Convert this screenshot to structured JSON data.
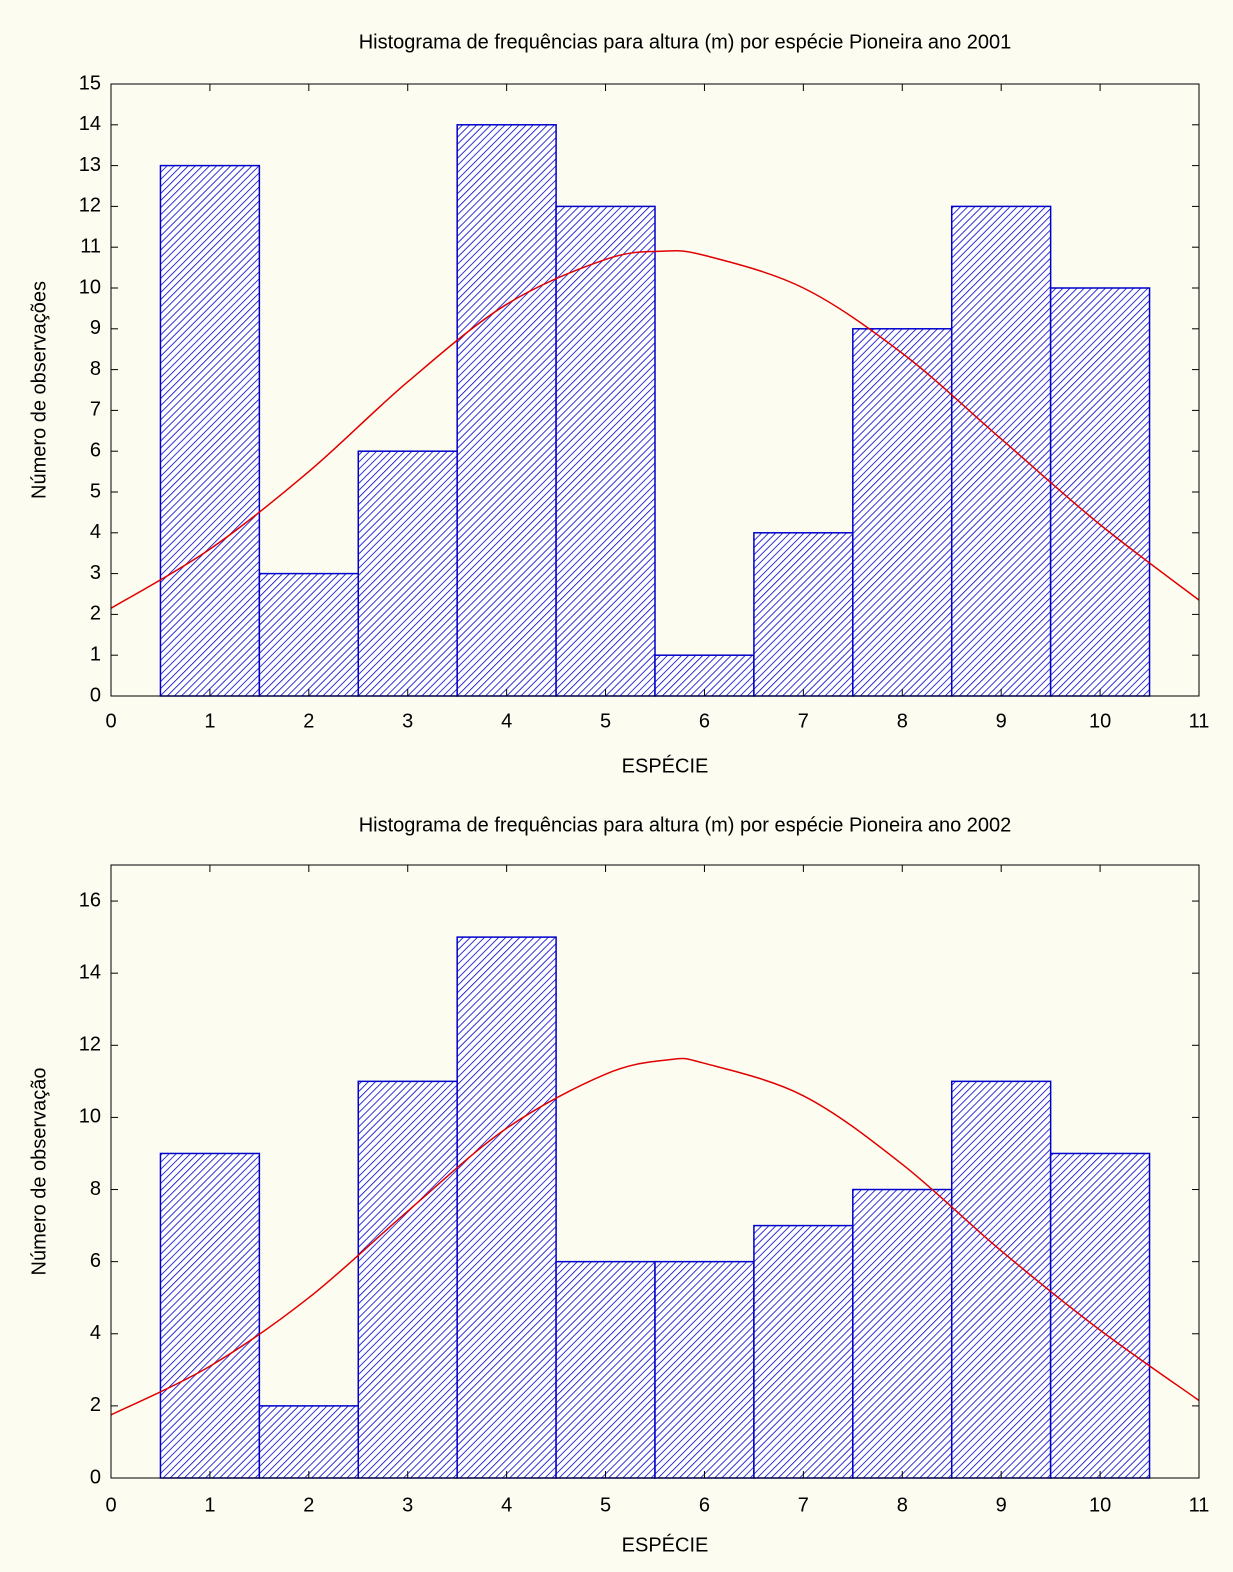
{
  "chart_data": [
    {
      "type": "histogram",
      "title": "Histograma de frequências para altura (m) por espécie Pioneira ano 2001",
      "xlabel": "ESPÉCIE",
      "ylabel": "Número de observações",
      "bins": [
        0.5,
        1.5,
        2.5,
        3.5,
        4.5,
        5.5,
        6.5,
        7.5,
        8.5,
        9.5,
        10.5
      ],
      "values": [
        13,
        3,
        6,
        14,
        12,
        1,
        4,
        9,
        12,
        10
      ],
      "color": "#0000cc",
      "xlim": [
        0,
        11
      ],
      "ylim": [
        0,
        15
      ],
      "xticks": [
        0,
        1,
        2,
        3,
        4,
        5,
        6,
        7,
        8,
        9,
        10,
        11
      ],
      "yticks": [
        0,
        1,
        2,
        3,
        4,
        5,
        6,
        7,
        8,
        9,
        10,
        11,
        12,
        13,
        14,
        15
      ],
      "curve": {
        "color": "#e00000",
        "x": [
          0,
          1,
          2,
          3,
          4,
          5,
          5.56,
          6,
          7,
          8,
          9,
          10,
          11
        ],
        "values": [
          2.15,
          3.6,
          5.5,
          7.7,
          9.6,
          10.7,
          10.9,
          10.8,
          10.0,
          8.4,
          6.3,
          4.2,
          2.35
        ]
      }
    },
    {
      "type": "histogram",
      "title": "Histograma de frequências para altura (m) por espécie Pioneira ano 2002",
      "xlabel": "ESPÉCIE",
      "ylabel": "Número de observação",
      "bins": [
        0.5,
        1.5,
        2.5,
        3.5,
        4.5,
        5.5,
        6.5,
        7.5,
        8.5,
        9.5,
        10.5
      ],
      "values": [
        9,
        2,
        11,
        15,
        6,
        6,
        7,
        8,
        11,
        9
      ],
      "color": "#0000cc",
      "xlim": [
        0,
        11
      ],
      "ylim": [
        0,
        17
      ],
      "xticks": [
        0,
        1,
        2,
        3,
        4,
        5,
        6,
        7,
        8,
        9,
        10,
        11
      ],
      "yticks": [
        0,
        2,
        4,
        6,
        8,
        10,
        12,
        14,
        16
      ],
      "curve": {
        "color": "#e00000",
        "x": [
          0,
          1,
          2,
          3,
          4,
          5,
          5.64,
          6,
          7,
          8,
          9,
          10,
          11
        ],
        "values": [
          1.75,
          3.1,
          5.0,
          7.4,
          9.7,
          11.2,
          11.6,
          11.5,
          10.6,
          8.7,
          6.3,
          4.1,
          2.15
        ]
      }
    }
  ]
}
